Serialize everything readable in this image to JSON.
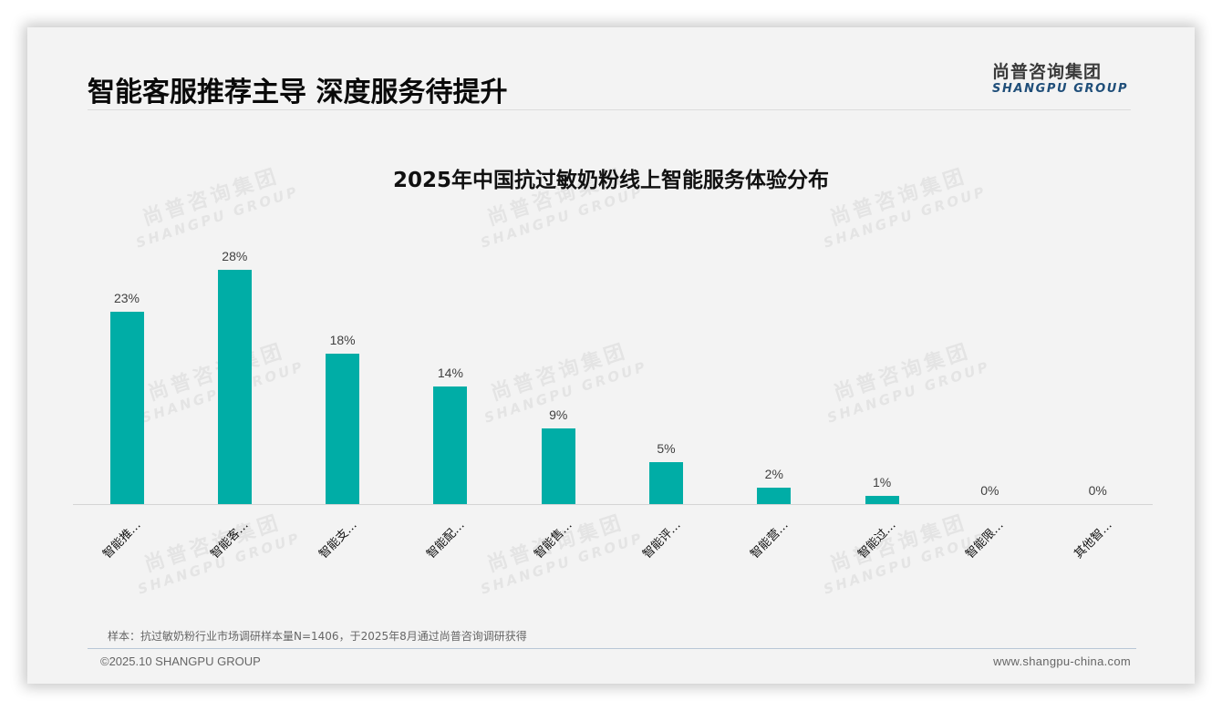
{
  "page": {
    "title": "智能客服推荐主导 深度服务待提升",
    "logo_cn": "尚普咨询集团",
    "logo_en": "SHANGPU GROUP",
    "watermark_cn": "尚普咨询集团",
    "watermark_en": "SHANGPU GROUP",
    "note": "样本：抗过敏奶粉行业市场调研样本量N=1406，于2025年8月通过尚普咨询调研获得",
    "copyright": "©2025.10 SHANGPU GROUP",
    "website": "www.shangpu-china.com"
  },
  "colors": {
    "bar": "#00ADA6",
    "logo_en": "#1F4E79",
    "background": "#F3F3F3"
  },
  "chart_data": {
    "type": "bar",
    "title": "2025年中国抗过敏奶粉线上智能服务体验分布",
    "categories": [
      "智能推…",
      "智能客…",
      "智能支…",
      "智能配…",
      "智能售…",
      "智能评…",
      "智能营…",
      "智能过…",
      "智能限…",
      "其他智…"
    ],
    "values": [
      23,
      28,
      18,
      14,
      9,
      5,
      2,
      1,
      0,
      0
    ],
    "value_labels": [
      "23%",
      "28%",
      "18%",
      "14%",
      "9%",
      "5%",
      "2%",
      "1%",
      "0%",
      "0%"
    ],
    "unit": "%",
    "xlabel": "",
    "ylabel": "",
    "ylim": [
      0,
      30
    ],
    "grid": false,
    "legend": "none",
    "data_labels": "above bars",
    "x_tick_rotation": -45
  }
}
